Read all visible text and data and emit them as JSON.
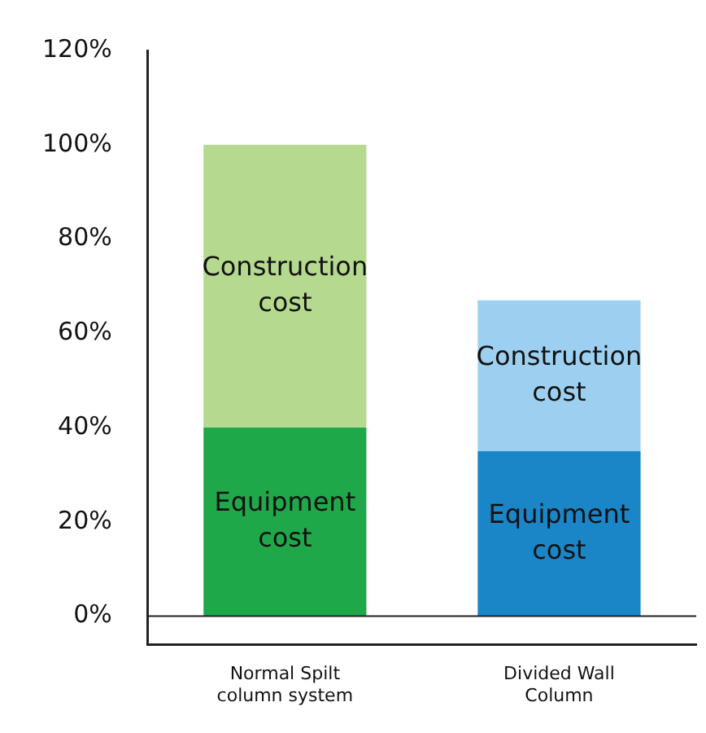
{
  "chart_data": {
    "type": "bar",
    "stacked": true,
    "categories": [
      "Normal Spilt column system",
      "Divided Wall Column"
    ],
    "series": [
      {
        "name": "Equipment cost",
        "colors": [
          "#1fa84a",
          "#1a86c8"
        ],
        "values": [
          40,
          35
        ]
      },
      {
        "name": "Construction cost",
        "colors": [
          "#b5d98e",
          "#9dd0f0"
        ],
        "values": [
          60,
          32
        ]
      }
    ],
    "ylim": [
      -6,
      120
    ],
    "yticks": [
      {
        "value": 0,
        "label": "0%"
      },
      {
        "value": 20,
        "label": "20%"
      },
      {
        "value": 40,
        "label": "40%"
      },
      {
        "value": 60,
        "label": "60%"
      },
      {
        "value": 80,
        "label": "80%"
      },
      {
        "value": 100,
        "label": "100%"
      },
      {
        "value": 120,
        "label": "120%"
      }
    ],
    "ref_lines": [
      {
        "axis": "y",
        "value": 0
      }
    ],
    "grid": false,
    "legend": false
  }
}
